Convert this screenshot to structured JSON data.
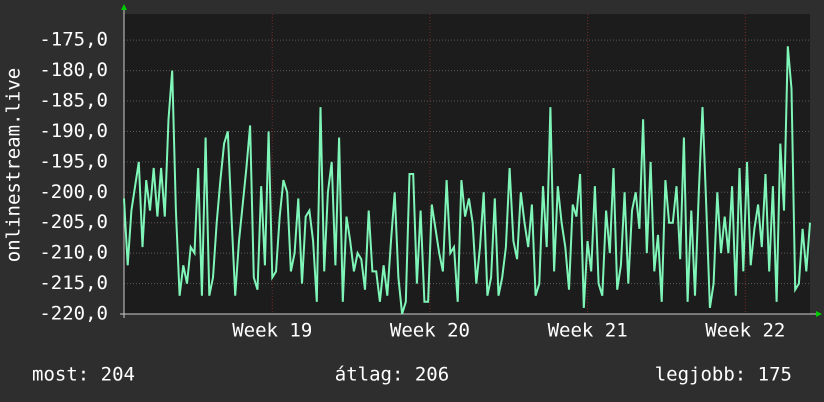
{
  "chart_data": {
    "type": "line",
    "ylabel": "onlinestream.live",
    "color": "#7ff5b8",
    "ylim": [
      -220,
      -170.7
    ],
    "yticks": [
      {
        "value": -220,
        "label": "-220,0"
      },
      {
        "value": -215,
        "label": "-215,0"
      },
      {
        "value": -210,
        "label": "-210,0"
      },
      {
        "value": -205,
        "label": "-205,0"
      },
      {
        "value": -200,
        "label": "-200,0"
      },
      {
        "value": -195,
        "label": "-195,0"
      },
      {
        "value": -190,
        "label": "-190,0"
      },
      {
        "value": -185,
        "label": "-185,0"
      },
      {
        "value": -180,
        "label": "-180,0"
      },
      {
        "value": -175,
        "label": "-175,0"
      }
    ],
    "xlim": [
      18.06,
      22.41
    ],
    "xticks": [
      {
        "value": 19,
        "label": "Week 19"
      },
      {
        "value": 20,
        "label": "Week 20"
      },
      {
        "value": 21,
        "label": "Week 21"
      },
      {
        "value": 22,
        "label": "Week 22"
      }
    ],
    "grid": true,
    "values": [
      -201,
      -212,
      -203,
      -199,
      -195,
      -209,
      -198,
      -203,
      -196,
      -204,
      -196,
      -204,
      -188,
      -180,
      -203,
      -217,
      -212,
      -215,
      -209,
      -210,
      -196,
      -217,
      -191,
      -217,
      -214,
      -205,
      -198,
      -192,
      -190,
      -204,
      -217,
      -208,
      -202,
      -196,
      -189,
      -214,
      -216,
      -199,
      -212,
      -190,
      -214,
      -213,
      -204,
      -198,
      -200,
      -213,
      -210,
      -201,
      -215,
      -204,
      -203,
      -208,
      -218,
      -186,
      -213,
      -200,
      -195,
      -212,
      -191,
      -218,
      -204,
      -208,
      -213,
      -210,
      -211,
      -216,
      -203,
      -213,
      -213,
      -218,
      -212,
      -217,
      -208,
      -200,
      -214,
      -220,
      -218,
      -197,
      -197,
      -215,
      -203,
      -218,
      -218,
      -202,
      -206,
      -210,
      -213,
      -198,
      -210,
      -209,
      -218,
      -198,
      -204,
      -201,
      -205,
      -215,
      -209,
      -200,
      -217,
      -214,
      -201,
      -217,
      -214,
      -209,
      -196,
      -208,
      -211,
      -200,
      -205,
      -209,
      -202,
      -217,
      -215,
      -199,
      -209,
      -186,
      -213,
      -199,
      -205,
      -209,
      -216,
      -202,
      -204,
      -197,
      -219,
      -208,
      -213,
      -199,
      -215,
      -217,
      -203,
      -210,
      -196,
      -216,
      -212,
      -200,
      -215,
      -203,
      -200,
      -206,
      -188,
      -210,
      -195,
      -213,
      -207,
      -218,
      -198,
      -205,
      -205,
      -199,
      -211,
      -191,
      -218,
      -203,
      -217,
      -200,
      -186,
      -202,
      -219,
      -215,
      -200,
      -210,
      -204,
      -210,
      -199,
      -217,
      -196,
      -213,
      -195,
      -212,
      -206,
      -202,
      -209,
      -197,
      -213,
      -199,
      -218,
      -192,
      -203,
      -176,
      -183,
      -216,
      -215,
      -206,
      -213,
      -205
    ],
    "footer": [
      "most: 204",
      "átlag: 206",
      "legjobb: 175"
    ]
  }
}
